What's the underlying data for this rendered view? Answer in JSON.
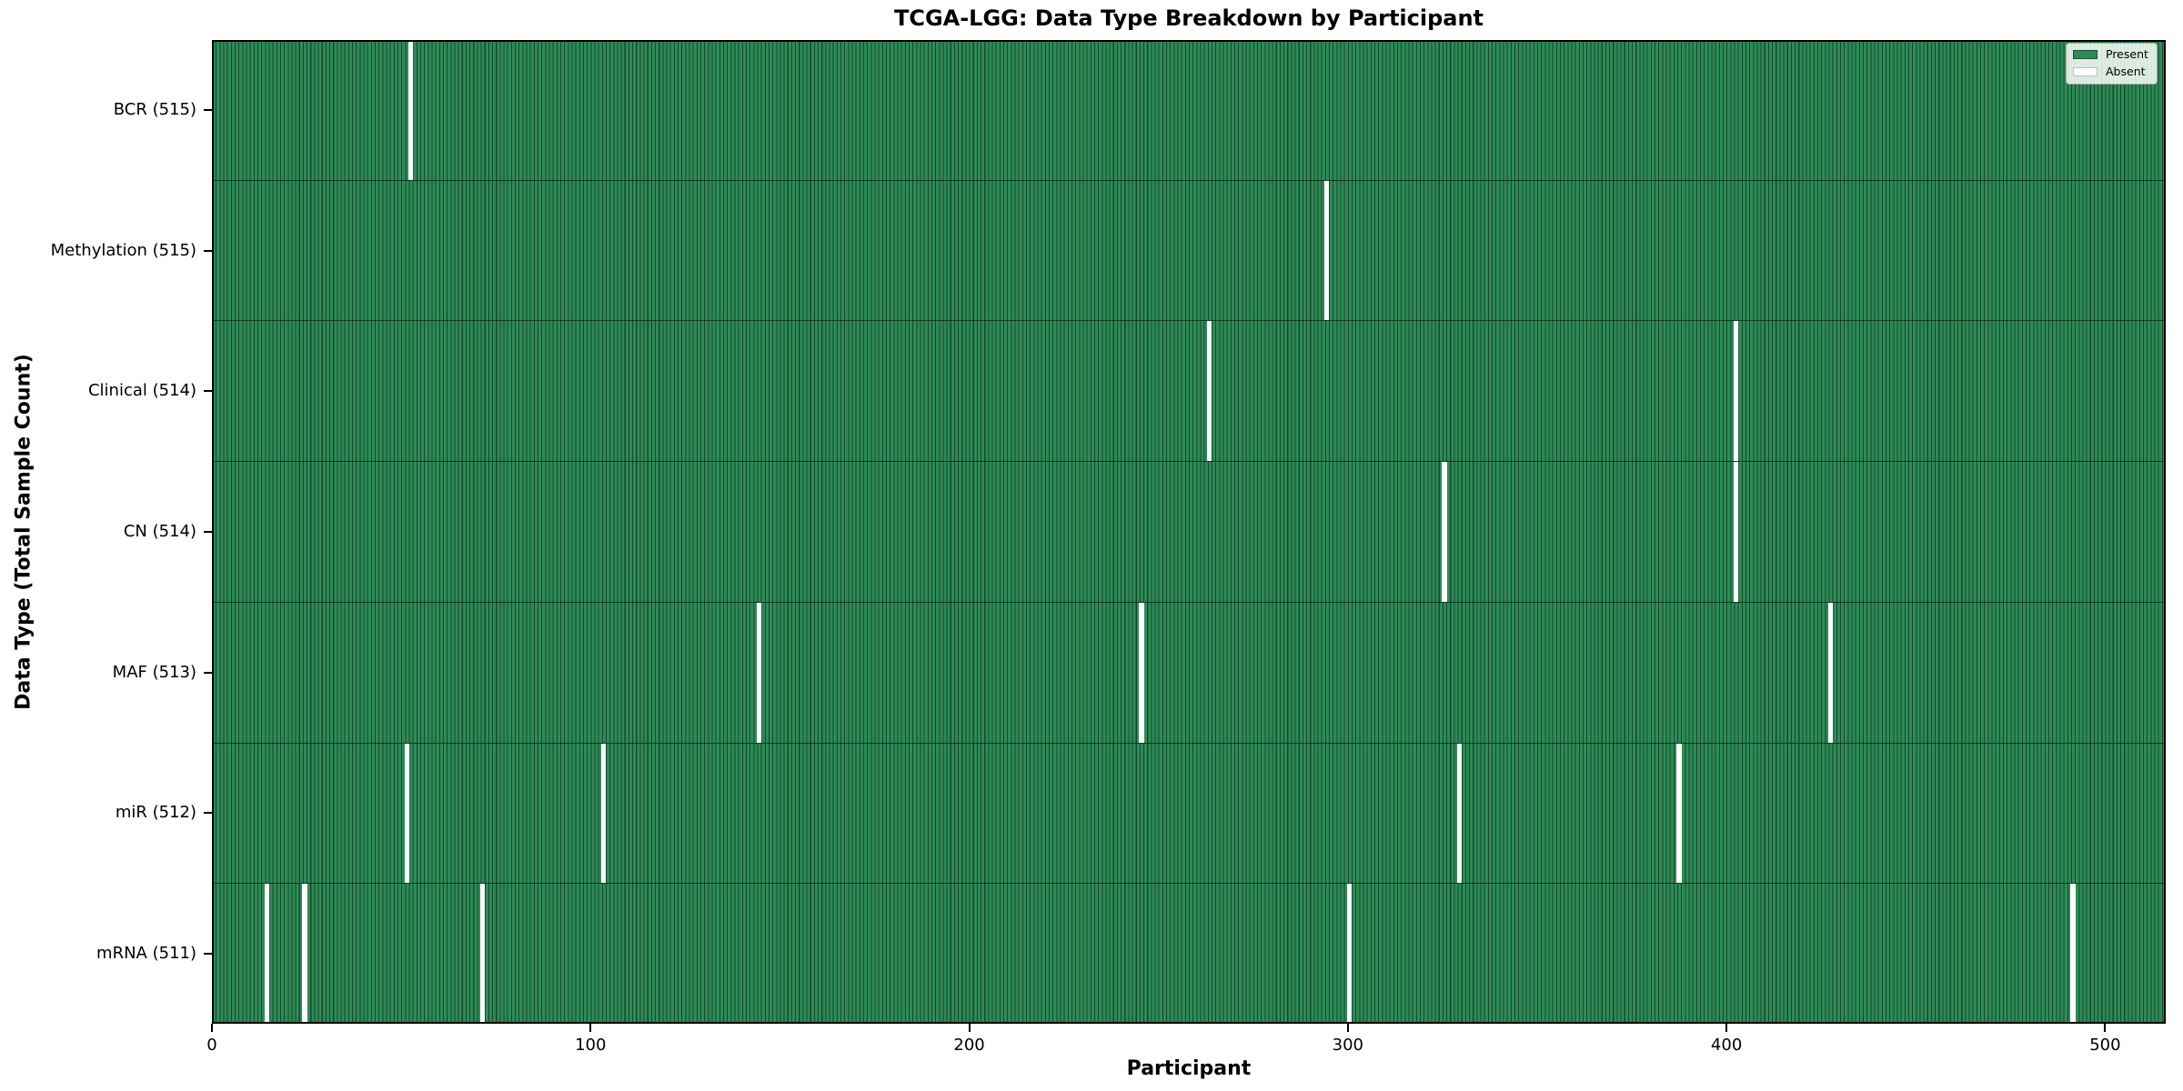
{
  "chart_data": {
    "type": "heatmap",
    "title": "TCGA-LGG: Data Type Breakdown by Participant",
    "xlabel": "Participant",
    "ylabel": "Data Type (Total Sample Count)",
    "x_ticks": [
      0,
      100,
      200,
      300,
      400,
      500
    ],
    "x_range": [
      0,
      516
    ],
    "n_participants": 516,
    "grid": false,
    "legend": {
      "position": "upper right",
      "entries": [
        {
          "label": "Present",
          "color": "#2e8b57"
        },
        {
          "label": "Absent",
          "color": "#ffffff"
        }
      ]
    },
    "rows": [
      {
        "name": "BCR",
        "label": "BCR (515)",
        "present_count": 515,
        "absent_participants": [
          52
        ]
      },
      {
        "name": "Methylation",
        "label": "Methylation (515)",
        "present_count": 515,
        "absent_participants": [
          294
        ]
      },
      {
        "name": "Clinical",
        "label": "Clinical (514)",
        "present_count": 514,
        "absent_participants": [
          263,
          402
        ]
      },
      {
        "name": "CN",
        "label": "CN (514)",
        "present_count": 514,
        "absent_participants": [
          325,
          402
        ]
      },
      {
        "name": "MAF",
        "label": "MAF (513)",
        "present_count": 513,
        "absent_participants": [
          144,
          245,
          427
        ]
      },
      {
        "name": "miR",
        "label": "miR (512)",
        "present_count": 512,
        "absent_participants": [
          51,
          103,
          329,
          387
        ]
      },
      {
        "name": "mRNA",
        "label": "mRNA (511)",
        "present_count": 511,
        "absent_participants": [
          14,
          24,
          71,
          300,
          491
        ]
      }
    ]
  },
  "colors": {
    "present": "#2e8b57",
    "absent": "#ffffff",
    "bar_edge": "#16482b",
    "spine": "#000000"
  }
}
